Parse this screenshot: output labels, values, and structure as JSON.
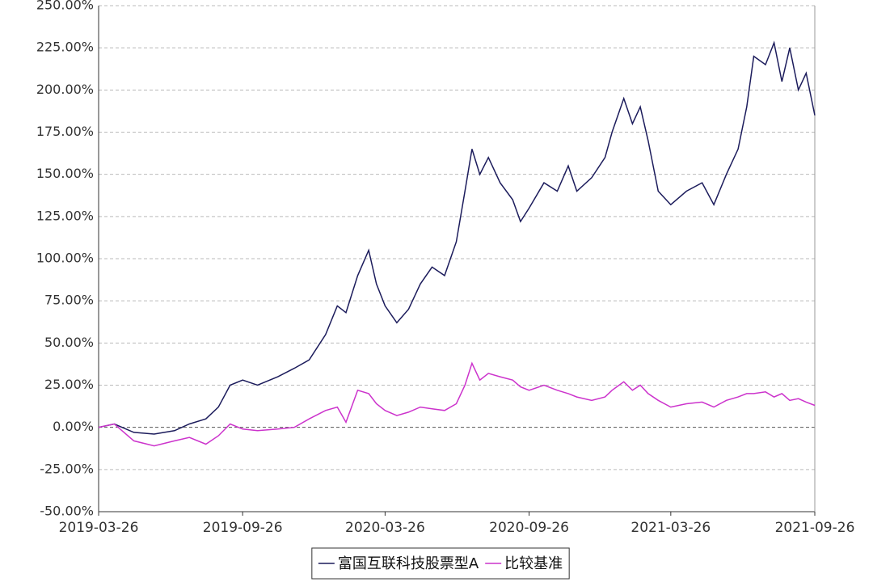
{
  "chart_data": {
    "type": "line",
    "x": [
      "2019-03-26",
      "2019-04-15",
      "2019-05-10",
      "2019-06-05",
      "2019-07-01",
      "2019-07-20",
      "2019-08-10",
      "2019-08-26",
      "2019-09-10",
      "2019-09-26",
      "2019-10-15",
      "2019-11-10",
      "2019-12-01",
      "2019-12-20",
      "2020-01-10",
      "2020-01-25",
      "2020-02-05",
      "2020-02-20",
      "2020-03-05",
      "2020-03-15",
      "2020-03-26",
      "2020-04-10",
      "2020-04-25",
      "2020-05-10",
      "2020-05-25",
      "2020-06-10",
      "2020-06-25",
      "2020-07-06",
      "2020-07-15",
      "2020-07-25",
      "2020-08-05",
      "2020-08-20",
      "2020-09-05",
      "2020-09-15",
      "2020-09-26",
      "2020-10-15",
      "2020-11-01",
      "2020-11-15",
      "2020-11-26",
      "2020-12-15",
      "2021-01-01",
      "2021-01-10",
      "2021-01-25",
      "2021-02-05",
      "2021-02-15",
      "2021-02-25",
      "2021-03-10",
      "2021-03-26",
      "2021-04-15",
      "2021-05-05",
      "2021-05-20",
      "2021-06-05",
      "2021-06-20",
      "2021-07-01",
      "2021-07-10",
      "2021-07-25",
      "2021-08-05",
      "2021-08-15",
      "2021-08-25",
      "2021-09-05",
      "2021-09-15",
      "2021-09-26"
    ],
    "series": [
      {
        "name": "富国互联科技股票型A",
        "color": "#1c1c5c",
        "values": [
          0,
          2,
          -3,
          -4,
          -2,
          2,
          5,
          12,
          25,
          28,
          25,
          30,
          35,
          40,
          55,
          72,
          68,
          90,
          105,
          85,
          72,
          62,
          70,
          85,
          95,
          90,
          110,
          140,
          165,
          150,
          160,
          145,
          135,
          122,
          130,
          145,
          140,
          155,
          140,
          148,
          160,
          175,
          195,
          180,
          190,
          170,
          140,
          132,
          140,
          145,
          132,
          150,
          165,
          190,
          220,
          215,
          228,
          205,
          225,
          200,
          210,
          185
        ]
      },
      {
        "name": "比较基准",
        "color": "#cc33cc",
        "values": [
          0,
          2,
          -8,
          -11,
          -8,
          -6,
          -10,
          -5,
          2,
          -1,
          -2,
          -1,
          0,
          5,
          10,
          12,
          3,
          22,
          20,
          14,
          10,
          7,
          9,
          12,
          11,
          10,
          14,
          25,
          38,
          28,
          32,
          30,
          28,
          24,
          22,
          25,
          22,
          20,
          18,
          16,
          18,
          22,
          27,
          22,
          25,
          20,
          16,
          12,
          14,
          15,
          12,
          16,
          18,
          20,
          20,
          21,
          18,
          20,
          16,
          17,
          15,
          13
        ]
      }
    ],
    "xlim": [
      "2019-03-26",
      "2021-09-26"
    ],
    "xticks": [
      "2019-03-26",
      "2019-09-26",
      "2020-03-26",
      "2020-09-26",
      "2021-03-26",
      "2021-09-26"
    ],
    "ylim": [
      -50,
      250
    ],
    "yticks": [
      {
        "value": -50,
        "label": "-50.00%"
      },
      {
        "value": -25,
        "label": "-25.00%"
      },
      {
        "value": 0,
        "label": "0.00%"
      },
      {
        "value": 25,
        "label": "25.00%"
      },
      {
        "value": 50,
        "label": "50.00%"
      },
      {
        "value": 75,
        "label": "75.00%"
      },
      {
        "value": 100,
        "label": "100.00%"
      },
      {
        "value": 125,
        "label": "125.00%"
      },
      {
        "value": 150,
        "label": "150.00%"
      },
      {
        "value": 175,
        "label": "175.00%"
      },
      {
        "value": 200,
        "label": "200.00%"
      },
      {
        "value": 225,
        "label": "225.00%"
      },
      {
        "value": 250,
        "label": "250.00%"
      }
    ],
    "grid": true,
    "legend": "bottom"
  }
}
